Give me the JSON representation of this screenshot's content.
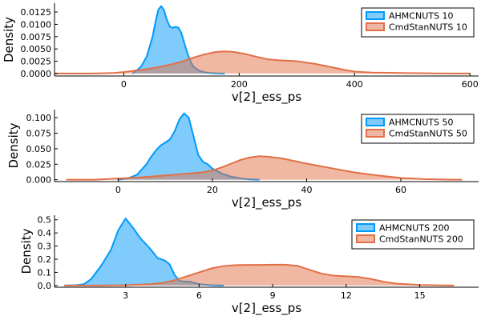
{
  "chart_data": [
    {
      "type": "area",
      "xlabel": "v[2]_ess_ps",
      "ylabel": "Density",
      "xlim": [
        -120,
        615
      ],
      "ylim": [
        -0.0005,
        0.0143
      ],
      "xticks": [
        0,
        200,
        400,
        600
      ],
      "yticks": [
        0.0,
        0.0025,
        0.005,
        0.0075,
        0.01,
        0.0125
      ],
      "xtick_labels": [
        "0",
        "200",
        "400",
        "600"
      ],
      "ytick_labels": [
        "0.0000",
        "0.0025",
        "0.0050",
        "0.0075",
        "0.0100",
        "0.0125"
      ],
      "legend_position": "top-right",
      "series": [
        {
          "name": "AHMCNUTS 10",
          "color": "#009AFA",
          "x": [
            15,
            20,
            30,
            40,
            50,
            55,
            60,
            65,
            70,
            75,
            80,
            85,
            90,
            95,
            100,
            105,
            110,
            115,
            120,
            130,
            140,
            150,
            160,
            170,
            175
          ],
          "y": [
            0,
            0.0004,
            0.0014,
            0.0035,
            0.0075,
            0.0105,
            0.013,
            0.0137,
            0.0128,
            0.0108,
            0.0095,
            0.0093,
            0.0095,
            0.0093,
            0.0082,
            0.0062,
            0.0042,
            0.0027,
            0.0015,
            0.0006,
            0.00025,
            0.0001,
            4e-05,
            1e-05,
            0
          ]
        },
        {
          "name": "CmdStanNUTS 10",
          "color": "#E26F46",
          "x": [
            -120,
            -60,
            -20,
            0,
            20,
            40,
            60,
            80,
            100,
            120,
            140,
            160,
            175,
            190,
            210,
            230,
            250,
            270,
            300,
            330,
            360,
            380,
            400,
            430,
            460,
            500,
            540,
            580,
            600
          ],
          "y": [
            0,
            0,
            0.0001,
            0.0003,
            0.0006,
            0.0009,
            0.0013,
            0.0018,
            0.0024,
            0.0032,
            0.0039,
            0.0044,
            0.0045,
            0.0044,
            0.004,
            0.0034,
            0.0029,
            0.0027,
            0.0025,
            0.002,
            0.0013,
            0.0008,
            0.0004,
            0.0002,
            0.00015,
            8e-05,
            3e-05,
            1e-05,
            0
          ]
        }
      ]
    },
    {
      "type": "area",
      "xlabel": "v[2]_ess_ps",
      "ylabel": "Density",
      "xlim": [
        -13.5,
        76.5
      ],
      "ylim": [
        -0.003,
        0.113
      ],
      "xticks": [
        0,
        20,
        40,
        60
      ],
      "yticks": [
        0.0,
        0.025,
        0.05,
        0.075,
        0.1
      ],
      "xtick_labels": [
        "0",
        "20",
        "40",
        "60"
      ],
      "ytick_labels": [
        "0.000",
        "0.025",
        "0.050",
        "0.075",
        "0.100"
      ],
      "legend_position": "top-right",
      "series": [
        {
          "name": "AHMCNUTS 50",
          "color": "#009AFA",
          "x": [
            0,
            2,
            4,
            6,
            7,
            8,
            9,
            10,
            11,
            12,
            13,
            14,
            15,
            16,
            17,
            18,
            19,
            20,
            22,
            24,
            26,
            28,
            30
          ],
          "y": [
            0,
            0.002,
            0.008,
            0.025,
            0.037,
            0.047,
            0.055,
            0.06,
            0.065,
            0.078,
            0.097,
            0.107,
            0.1,
            0.07,
            0.04,
            0.029,
            0.025,
            0.018,
            0.01,
            0.005,
            0.002,
            0.0005,
            0
          ]
        },
        {
          "name": "CmdStanNUTS 50",
          "color": "#E26F46",
          "x": [
            -11,
            -5,
            0,
            5,
            10,
            15,
            18,
            20,
            22,
            24,
            26,
            28,
            30,
            32,
            35,
            40,
            45,
            50,
            55,
            60,
            65,
            70,
            73
          ],
          "y": [
            0,
            0,
            0.002,
            0.004,
            0.007,
            0.01,
            0.012,
            0.015,
            0.02,
            0.026,
            0.032,
            0.036,
            0.038,
            0.037,
            0.034,
            0.026,
            0.019,
            0.012,
            0.007,
            0.003,
            0.001,
            0.0002,
            0
          ]
        }
      ]
    },
    {
      "type": "area",
      "xlabel": "v[2]_ess_ps",
      "ylabel": "Density",
      "xlim": [
        0.1,
        17.4
      ],
      "ylim": [
        -0.013,
        0.535
      ],
      "xticks": [
        3,
        6,
        9,
        12,
        15
      ],
      "yticks": [
        0.0,
        0.1,
        0.2,
        0.3,
        0.4,
        0.5
      ],
      "xtick_labels": [
        "3",
        "6",
        "9",
        "12",
        "15"
      ],
      "ytick_labels": [
        "0.0",
        "0.1",
        "0.2",
        "0.3",
        "0.4",
        "0.5"
      ],
      "legend_position": "top-right",
      "series": [
        {
          "name": "AHMCNUTS 200",
          "color": "#009AFA",
          "x": [
            0.5,
            1.0,
            1.3,
            1.6,
            2.0,
            2.4,
            2.7,
            3.0,
            3.3,
            3.6,
            4.0,
            4.3,
            4.6,
            4.8,
            5.0,
            5.2,
            5.4,
            5.6,
            6.0,
            6.5,
            7.0
          ],
          "y": [
            0,
            0.002,
            0.01,
            0.05,
            0.15,
            0.27,
            0.42,
            0.51,
            0.44,
            0.36,
            0.28,
            0.21,
            0.19,
            0.16,
            0.08,
            0.035,
            0.03,
            0.03,
            0.01,
            0.002,
            0
          ]
        },
        {
          "name": "CmdStanNUTS 200",
          "color": "#E26F46",
          "x": [
            0.5,
            2,
            3,
            4,
            4.5,
            5,
            5.5,
            6,
            6.5,
            7,
            7.5,
            8,
            8.5,
            9,
            9.5,
            10,
            10.5,
            11,
            11.5,
            12,
            12.5,
            13,
            13.5,
            14,
            15,
            16,
            16.4
          ],
          "y": [
            0,
            0,
            0.002,
            0.01,
            0.02,
            0.04,
            0.07,
            0.1,
            0.13,
            0.148,
            0.155,
            0.157,
            0.157,
            0.158,
            0.158,
            0.15,
            0.12,
            0.09,
            0.075,
            0.07,
            0.065,
            0.05,
            0.03,
            0.015,
            0.004,
            0.001,
            0
          ]
        }
      ]
    }
  ]
}
